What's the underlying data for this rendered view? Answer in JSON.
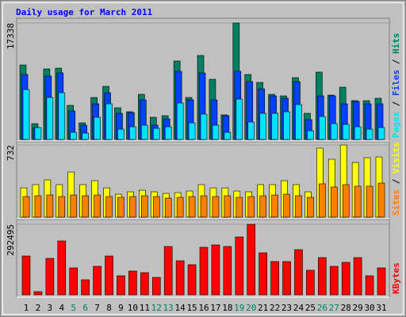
{
  "title": "Daily usage for March 2011",
  "legend_separator": "/",
  "chart_data": [
    {
      "type": "bar",
      "ylim": [
        0,
        17338
      ],
      "yticks": [
        17338
      ],
      "series": [
        {
          "name": "Hits",
          "color": "#008060",
          "values": [
            11087,
            2359,
            10498,
            10616,
            5072,
            2477,
            6251,
            7903,
            4718,
            4128,
            6723,
            3303,
            3539,
            11677,
            6251,
            12503,
            8964,
            3656,
            17338,
            9672,
            8492,
            6723,
            6487,
            9200,
            3892,
            10026,
            6605,
            7785,
            5780,
            5780,
            6133
          ]
        },
        {
          "name": "Files",
          "color": "#0040ff",
          "values": [
            9672,
            1769,
            9436,
            9908,
            4246,
            2123,
            5308,
            6959,
            3892,
            4010,
            5897,
            2123,
            3067,
            10144,
            5897,
            9908,
            5897,
            3539,
            10144,
            8610,
            7549,
            6487,
            6133,
            8610,
            2949,
            6487,
            6487,
            5308,
            5662,
            5308,
            5308
          ]
        },
        {
          "name": "Pages",
          "color": "#00e0ff",
          "values": [
            7431,
            1769,
            6251,
            6959,
            1062,
            944,
            3303,
            5308,
            1533,
            1887,
            2123,
            1651,
            1887,
            5426,
            2477,
            3774,
            2123,
            1062,
            6015,
            2595,
            3892,
            3892,
            4128,
            5190,
            1297,
            3421,
            2359,
            2241,
            1887,
            1533,
            1769
          ]
        }
      ]
    },
    {
      "type": "bar",
      "ylim": [
        0,
        732
      ],
      "yticks": [
        732
      ],
      "series": [
        {
          "name": "Visits",
          "color": "#ffff00",
          "values": [
            297,
            330,
            378,
            330,
            458,
            330,
            370,
            297,
            233,
            257,
            273,
            257,
            241,
            249,
            265,
            330,
            297,
            297,
            265,
            257,
            330,
            330,
            370,
            330,
            257,
            700,
            587,
            732,
            555,
            603,
            611
          ]
        },
        {
          "name": "Sites",
          "color": "#ff8000",
          "values": [
            209,
            217,
            225,
            209,
            225,
            217,
            225,
            209,
            201,
            209,
            217,
            209,
            193,
            201,
            209,
            217,
            209,
            217,
            201,
            209,
            217,
            225,
            233,
            217,
            201,
            338,
            306,
            330,
            314,
            314,
            346
          ]
        }
      ]
    },
    {
      "type": "bar",
      "ylim": [
        0,
        292495
      ],
      "yticks": [
        292495
      ],
      "categories": [
        "1",
        "2",
        "3",
        "4",
        "5",
        "6",
        "7",
        "8",
        "9",
        "10",
        "11",
        "12",
        "13",
        "14",
        "15",
        "16",
        "17",
        "18",
        "19",
        "20",
        "21",
        "22",
        "23",
        "24",
        "25",
        "26",
        "27",
        "28",
        "29",
        "30",
        "31"
      ],
      "category_colors": [
        "#000000",
        "#000000",
        "#000000",
        "#000000",
        "#008060",
        "#008060",
        "#000000",
        "#000000",
        "#000000",
        "#000000",
        "#000000",
        "#008060",
        "#008060",
        "#000000",
        "#000000",
        "#000000",
        "#000000",
        "#000000",
        "#008060",
        "#008060",
        "#000000",
        "#000000",
        "#000000",
        "#000000",
        "#000000",
        "#008060",
        "#008060",
        "#000000",
        "#000000",
        "#000000",
        "#000000"
      ],
      "series": [
        {
          "name": "KBytes",
          "color": "#ff0000",
          "values": [
            161014,
            13144,
            151156,
            223448,
            111724,
            62434,
            118296,
            161014,
            78864,
            98580,
            92008,
            72292,
            200446,
            141298,
            124868,
            197160,
            207018,
            200446,
            239878,
            292495,
            174158,
            138012,
            138012,
            187302,
            101866,
            154442,
            118296,
            134726,
            154442,
            78864,
            111724
          ]
        }
      ]
    }
  ]
}
